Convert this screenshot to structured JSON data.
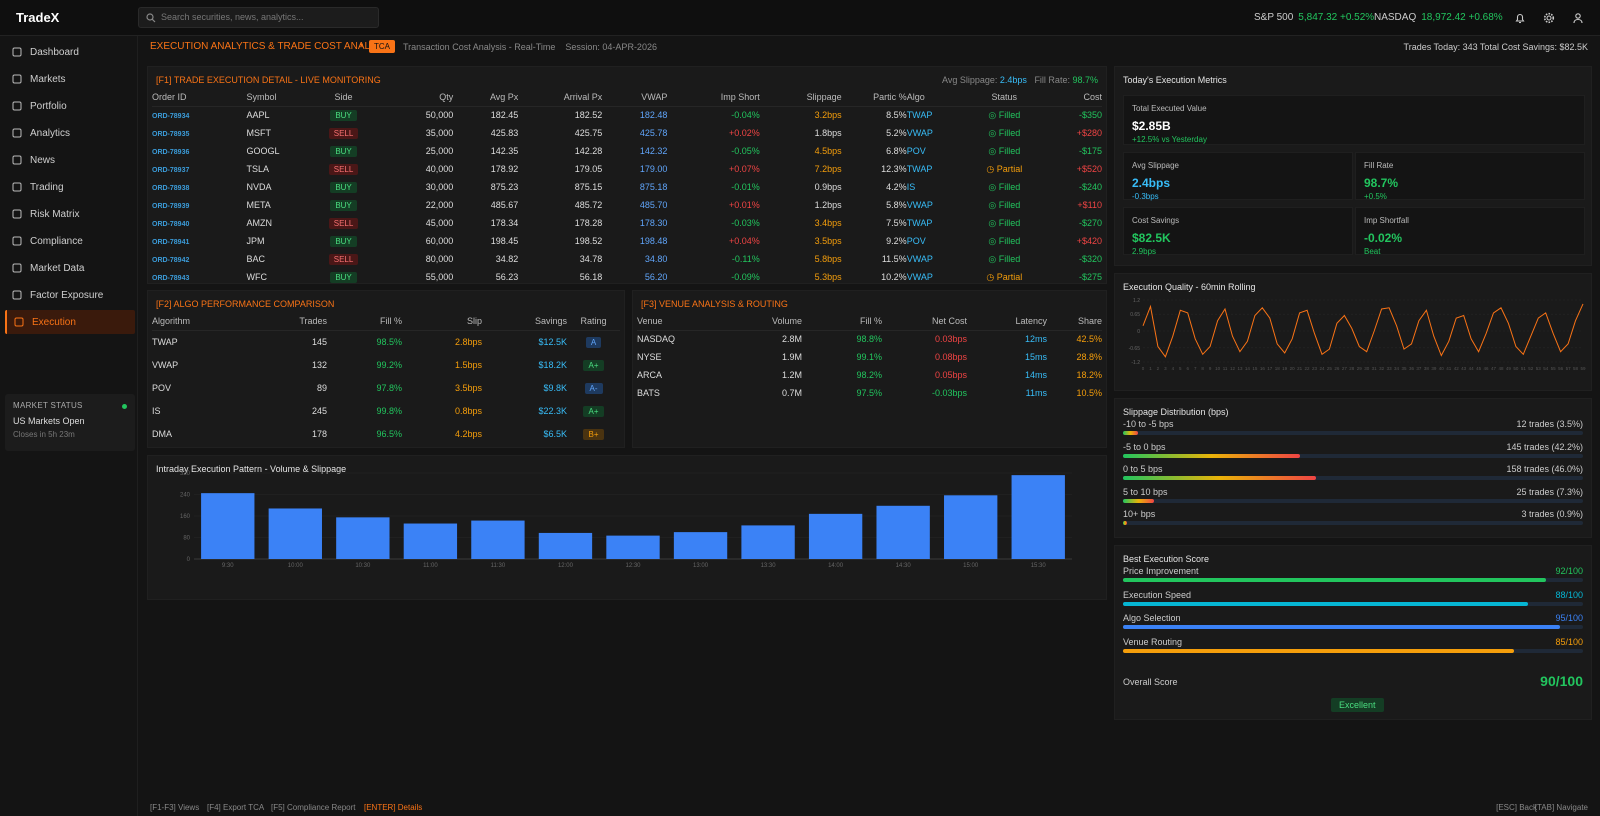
{
  "app": {
    "logo": "TradeX",
    "search_placeholder": "Search securities, news, analytics..."
  },
  "tickers": [
    {
      "name": "S&P 500",
      "value": "5,847.32 +0.52%"
    },
    {
      "name": "NASDAQ",
      "value": "18,972.42 +0.68%"
    }
  ],
  "nav": [
    {
      "label": "Dashboard",
      "icon": "dashboard-icon"
    },
    {
      "label": "Markets",
      "icon": "trend-icon"
    },
    {
      "label": "Portfolio",
      "icon": "briefcase-icon"
    },
    {
      "label": "Analytics",
      "icon": "chart-icon"
    },
    {
      "label": "News",
      "icon": "news-icon"
    },
    {
      "label": "Trading",
      "icon": "swap-icon"
    },
    {
      "label": "Risk Matrix",
      "icon": "shield-icon"
    },
    {
      "label": "Compliance",
      "icon": "document-icon"
    },
    {
      "label": "Market Data",
      "icon": "database-icon"
    },
    {
      "label": "Factor Exposure",
      "icon": "layers-icon"
    },
    {
      "label": "Execution",
      "icon": "pulse-icon",
      "active": true
    }
  ],
  "market_status": {
    "title": "MARKET STATUS",
    "status": "US Markets Open",
    "closes": "Closes in 5h 23m"
  },
  "header": {
    "title": "EXECUTION ANALYTICS & TRADE COST ANALYSIS",
    "badge": "TCA",
    "subtitle": "Transaction Cost Analysis - Real-Time",
    "session": "Session: 04-APR-2026",
    "right": "Trades Today: 343   Total Cost Savings: $82.5K"
  },
  "trades": {
    "title": "[F1] TRADE EXECUTION DETAIL - LIVE MONITORING",
    "avg_label": "Avg Slippage:",
    "avg": "2.4bps",
    "fill_label": "Fill Rate:",
    "fill": "98.7%",
    "columns": [
      "Order ID",
      "Symbol",
      "Side",
      "Qty",
      "Avg Px",
      "Arrival Px",
      "VWAP",
      "Imp Short",
      "Slippage",
      "Partic %",
      "Algo",
      "Status",
      "Cost"
    ],
    "rows": [
      [
        "ORD-78934",
        "AAPL",
        "BUY",
        "50,000",
        "182.45",
        "182.52",
        "182.48",
        "-0.04%",
        "3.2bps",
        "8.5%",
        "TWAP",
        "Filled",
        "-$350"
      ],
      [
        "ORD-78935",
        "MSFT",
        "SELL",
        "35,000",
        "425.83",
        "425.75",
        "425.78",
        "+0.02%",
        "1.8bps",
        "5.2%",
        "VWAP",
        "Filled",
        "+$280"
      ],
      [
        "ORD-78936",
        "GOOGL",
        "BUY",
        "25,000",
        "142.35",
        "142.28",
        "142.32",
        "-0.05%",
        "4.5bps",
        "6.8%",
        "POV",
        "Filled",
        "-$175"
      ],
      [
        "ORD-78937",
        "TSLA",
        "SELL",
        "40,000",
        "178.92",
        "179.05",
        "179.00",
        "+0.07%",
        "7.2bps",
        "12.3%",
        "TWAP",
        "Partial",
        "+$520"
      ],
      [
        "ORD-78938",
        "NVDA",
        "BUY",
        "30,000",
        "875.23",
        "875.15",
        "875.18",
        "-0.01%",
        "0.9bps",
        "4.2%",
        "IS",
        "Filled",
        "-$240"
      ],
      [
        "ORD-78939",
        "META",
        "BUY",
        "22,000",
        "485.67",
        "485.72",
        "485.70",
        "+0.01%",
        "1.2bps",
        "5.8%",
        "VWAP",
        "Filled",
        "+$110"
      ],
      [
        "ORD-78940",
        "AMZN",
        "SELL",
        "45,000",
        "178.34",
        "178.28",
        "178.30",
        "-0.03%",
        "3.4bps",
        "7.5%",
        "TWAP",
        "Filled",
        "-$270"
      ],
      [
        "ORD-78941",
        "JPM",
        "BUY",
        "60,000",
        "198.45",
        "198.52",
        "198.48",
        "+0.04%",
        "3.5bps",
        "9.2%",
        "POV",
        "Filled",
        "+$420"
      ],
      [
        "ORD-78942",
        "BAC",
        "SELL",
        "80,000",
        "34.82",
        "34.78",
        "34.80",
        "-0.11%",
        "5.8bps",
        "11.5%",
        "VWAP",
        "Filled",
        "-$320"
      ],
      [
        "ORD-78943",
        "WFC",
        "BUY",
        "55,000",
        "56.23",
        "56.18",
        "56.20",
        "-0.09%",
        "5.3bps",
        "10.2%",
        "VWAP",
        "Partial",
        "-$275"
      ]
    ]
  },
  "algos": {
    "title": "[F2] ALGO PERFORMANCE COMPARISON",
    "columns": [
      "Algorithm",
      "Trades",
      "Fill %",
      "Slip",
      "Savings",
      "Rating"
    ],
    "rows": [
      [
        "TWAP",
        "145",
        "98.5%",
        "2.8bps",
        "$12.5K",
        "A"
      ],
      [
        "VWAP",
        "132",
        "99.2%",
        "1.5bps",
        "$18.2K",
        "A+"
      ],
      [
        "POV",
        "89",
        "97.8%",
        "3.5bps",
        "$9.8K",
        "A-"
      ],
      [
        "IS",
        "245",
        "99.8%",
        "0.8bps",
        "$22.3K",
        "A+"
      ],
      [
        "DMA",
        "178",
        "96.5%",
        "4.2bps",
        "$6.5K",
        "B+"
      ]
    ]
  },
  "venues": {
    "title": "[F3] VENUE ANALYSIS & ROUTING",
    "columns": [
      "Venue",
      "Volume",
      "Fill %",
      "Net Cost",
      "Latency",
      "Share"
    ],
    "rows": [
      [
        "NASDAQ",
        "2.8M",
        "98.8%",
        "0.03bps",
        "12ms",
        "42.5%"
      ],
      [
        "NYSE",
        "1.9M",
        "99.1%",
        "0.08bps",
        "15ms",
        "28.8%"
      ],
      [
        "ARCA",
        "1.2M",
        "98.2%",
        "0.05bps",
        "14ms",
        "18.2%"
      ],
      [
        "BATS",
        "0.7M",
        "97.5%",
        "-0.03bps",
        "11ms",
        "10.5%"
      ]
    ]
  },
  "chart_data": [
    {
      "type": "bar",
      "title": "Intraday Execution Pattern - Volume & Slippage",
      "categories": [
        "9:30",
        "10:00",
        "10:30",
        "11:00",
        "11:30",
        "12:00",
        "12:30",
        "13:00",
        "13:30",
        "14:00",
        "14:30",
        "15:00",
        "15:30"
      ],
      "values": [
        245,
        188,
        155,
        132,
        143,
        97,
        87,
        100,
        125,
        168,
        198,
        237,
        312
      ],
      "ylim": [
        0,
        320
      ],
      "yticks": [
        0,
        80,
        160,
        240,
        320
      ],
      "color": "#3b82f6"
    },
    {
      "type": "line",
      "title": "Execution Quality - 60min Rolling",
      "x": [
        0,
        1,
        2,
        3,
        4,
        5,
        6,
        7,
        8,
        9,
        10,
        11,
        12,
        13,
        14,
        15,
        16,
        17,
        18,
        19,
        20,
        21,
        22,
        23,
        24,
        25,
        26,
        27,
        28,
        29,
        30,
        31,
        32,
        33,
        34,
        35,
        36,
        37,
        38,
        39,
        40,
        41,
        42,
        43,
        44,
        45,
        46,
        47,
        48,
        49,
        50,
        51,
        52,
        53,
        54,
        55,
        56,
        57,
        58,
        59
      ],
      "y": [
        0.2,
        0.95,
        -0.6,
        -1.0,
        -0.2,
        0.8,
        0.7,
        -0.3,
        -0.9,
        -0.6,
        0.4,
        0.85,
        -0.2,
        -0.8,
        -0.4,
        0.6,
        0.9,
        0.5,
        -0.5,
        -0.85,
        -0.3,
        0.7,
        0.8,
        -0.1,
        -0.9,
        -0.7,
        0.3,
        0.6,
        0.1,
        -0.6,
        -0.8,
        0.0,
        0.85,
        0.9,
        0.2,
        -0.7,
        -0.5,
        0.4,
        0.8,
        -0.2,
        -0.95,
        -0.4,
        0.5,
        0.6,
        -0.3,
        -0.8,
        -0.1,
        0.7,
        0.9,
        0.3,
        -0.6,
        -0.9,
        -0.2,
        0.5,
        0.7,
        -0.1,
        -0.8,
        -0.5,
        0.4,
        1.05
      ],
      "ylim": [
        -1.2,
        1.2
      ],
      "yticks": [
        "1.2",
        "0.65",
        "0",
        "-0.65",
        "-1.2"
      ],
      "color": "#f97316"
    }
  ],
  "metrics": {
    "title": "Today's Execution Metrics",
    "total": {
      "label": "Total Executed Value",
      "value": "$2.85B",
      "delta": "+12.5% vs Yesterday"
    },
    "cards": [
      {
        "label": "Avg Slippage",
        "value": "2.4bps",
        "delta": "-0.3bps",
        "color": "#38bdf8"
      },
      {
        "label": "Fill Rate",
        "value": "98.7%",
        "delta": "+0.5%",
        "color": "#22c55e"
      },
      {
        "label": "Cost Savings",
        "value": "$82.5K",
        "delta": "2.9bps",
        "color": "#22c55e"
      },
      {
        "label": "Imp Shortfall",
        "value": "-0.02%",
        "delta": "Beat",
        "color": "#22c55e"
      }
    ]
  },
  "quality_title": "Execution Quality - 60min Rolling",
  "slippage": {
    "title": "Slippage Distribution (bps)",
    "rows": [
      {
        "label": "-10 to -5 bps",
        "count": "12 trades (3.5%)",
        "pct": 3.5
      },
      {
        "label": "-5 to 0 bps",
        "count": "145 trades (42.2%)",
        "pct": 42.2
      },
      {
        "label": "0 to 5 bps",
        "count": "158 trades (46.0%)",
        "pct": 46.0
      },
      {
        "label": "5 to 10 bps",
        "count": "25 trades (7.3%)",
        "pct": 7.3
      },
      {
        "label": "10+ bps",
        "count": "3 trades (0.9%)",
        "pct": 0.9
      }
    ]
  },
  "score": {
    "title": "Best Execution Score",
    "rows": [
      {
        "label": "Price Improvement",
        "value": "92/100",
        "pct": 92,
        "color": "#22c55e"
      },
      {
        "label": "Execution Speed",
        "value": "88/100",
        "pct": 88,
        "color": "#06b6d4"
      },
      {
        "label": "Algo Selection",
        "value": "95/100",
        "pct": 95,
        "color": "#3b82f6"
      },
      {
        "label": "Venue Routing",
        "value": "85/100",
        "pct": 85,
        "color": "#f59e0b"
      }
    ],
    "overall_label": "Overall Score",
    "overall": "90/100",
    "grade": "Excellent"
  },
  "footer": {
    "left": [
      "[F1-F3] Views",
      "[F4] Export TCA",
      "[F5] Compliance Report",
      "[ENTER] Details"
    ],
    "right": [
      "[ESC] Back",
      "[TAB] Navigate"
    ]
  }
}
